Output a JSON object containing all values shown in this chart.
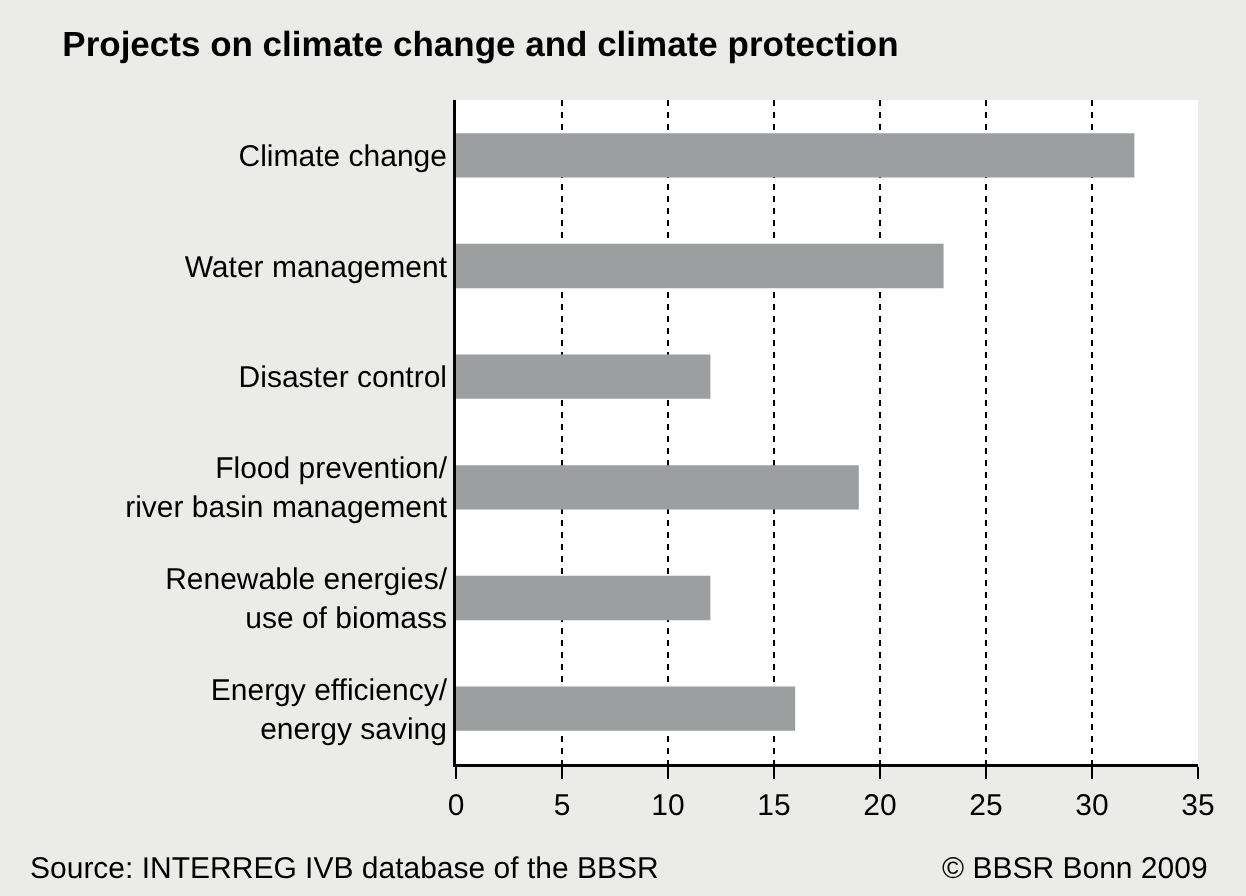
{
  "chart_data": {
    "type": "bar",
    "orientation": "horizontal",
    "title": "Projects on climate change and climate protection",
    "categories": [
      "Climate change",
      "Water management",
      "Disaster control",
      "Flood prevention/\nriver basin management",
      "Renewable energies/\nuse of biomass",
      "Energy efficiency/\nenergy saving"
    ],
    "values": [
      32,
      23,
      12,
      19,
      12,
      16
    ],
    "color": "#9d9e9f",
    "xlim": [
      0,
      35
    ],
    "xticks": [
      0,
      5,
      10,
      15,
      20,
      25,
      30,
      35
    ],
    "grid": "x",
    "annotations": [
      "Source: INTERREG IVB database of the BBSR",
      "© BBSR Bonn 2009"
    ]
  }
}
